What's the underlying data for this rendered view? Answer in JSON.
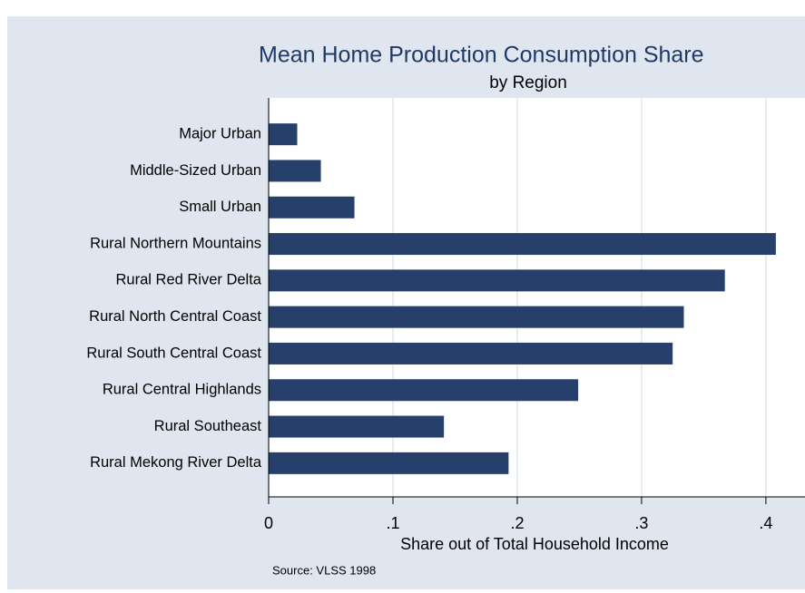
{
  "chart_data": {
    "type": "barh",
    "title": "Mean Home Production Consumption Share",
    "subtitle": "by Region",
    "xlabel": "Share out of Total Household Income",
    "note": "Source: VLSS 1998",
    "categories": [
      "Major Urban",
      "Middle-Sized Urban",
      "Small Urban",
      "Rural Northern Mountains",
      "Rural Red River Delta",
      "Rural North Central Coast",
      "Rural South Central Coast",
      "Rural Central Highlands",
      "Rural Southeast",
      "Rural Mekong River Delta"
    ],
    "values": [
      0.023,
      0.042,
      0.069,
      0.408,
      0.367,
      0.334,
      0.325,
      0.249,
      0.141,
      0.193
    ],
    "color": "#263f6b",
    "xlim": [
      0,
      0.43
    ],
    "xticks": [
      0,
      {
        "value": 0.1,
        "label": ".1"
      },
      {
        "value": 0.2,
        "label": ".2"
      },
      {
        "value": 0.3,
        "label": ".3"
      },
      {
        "value": 0.4,
        "label": ".4"
      }
    ],
    "grid": true
  }
}
